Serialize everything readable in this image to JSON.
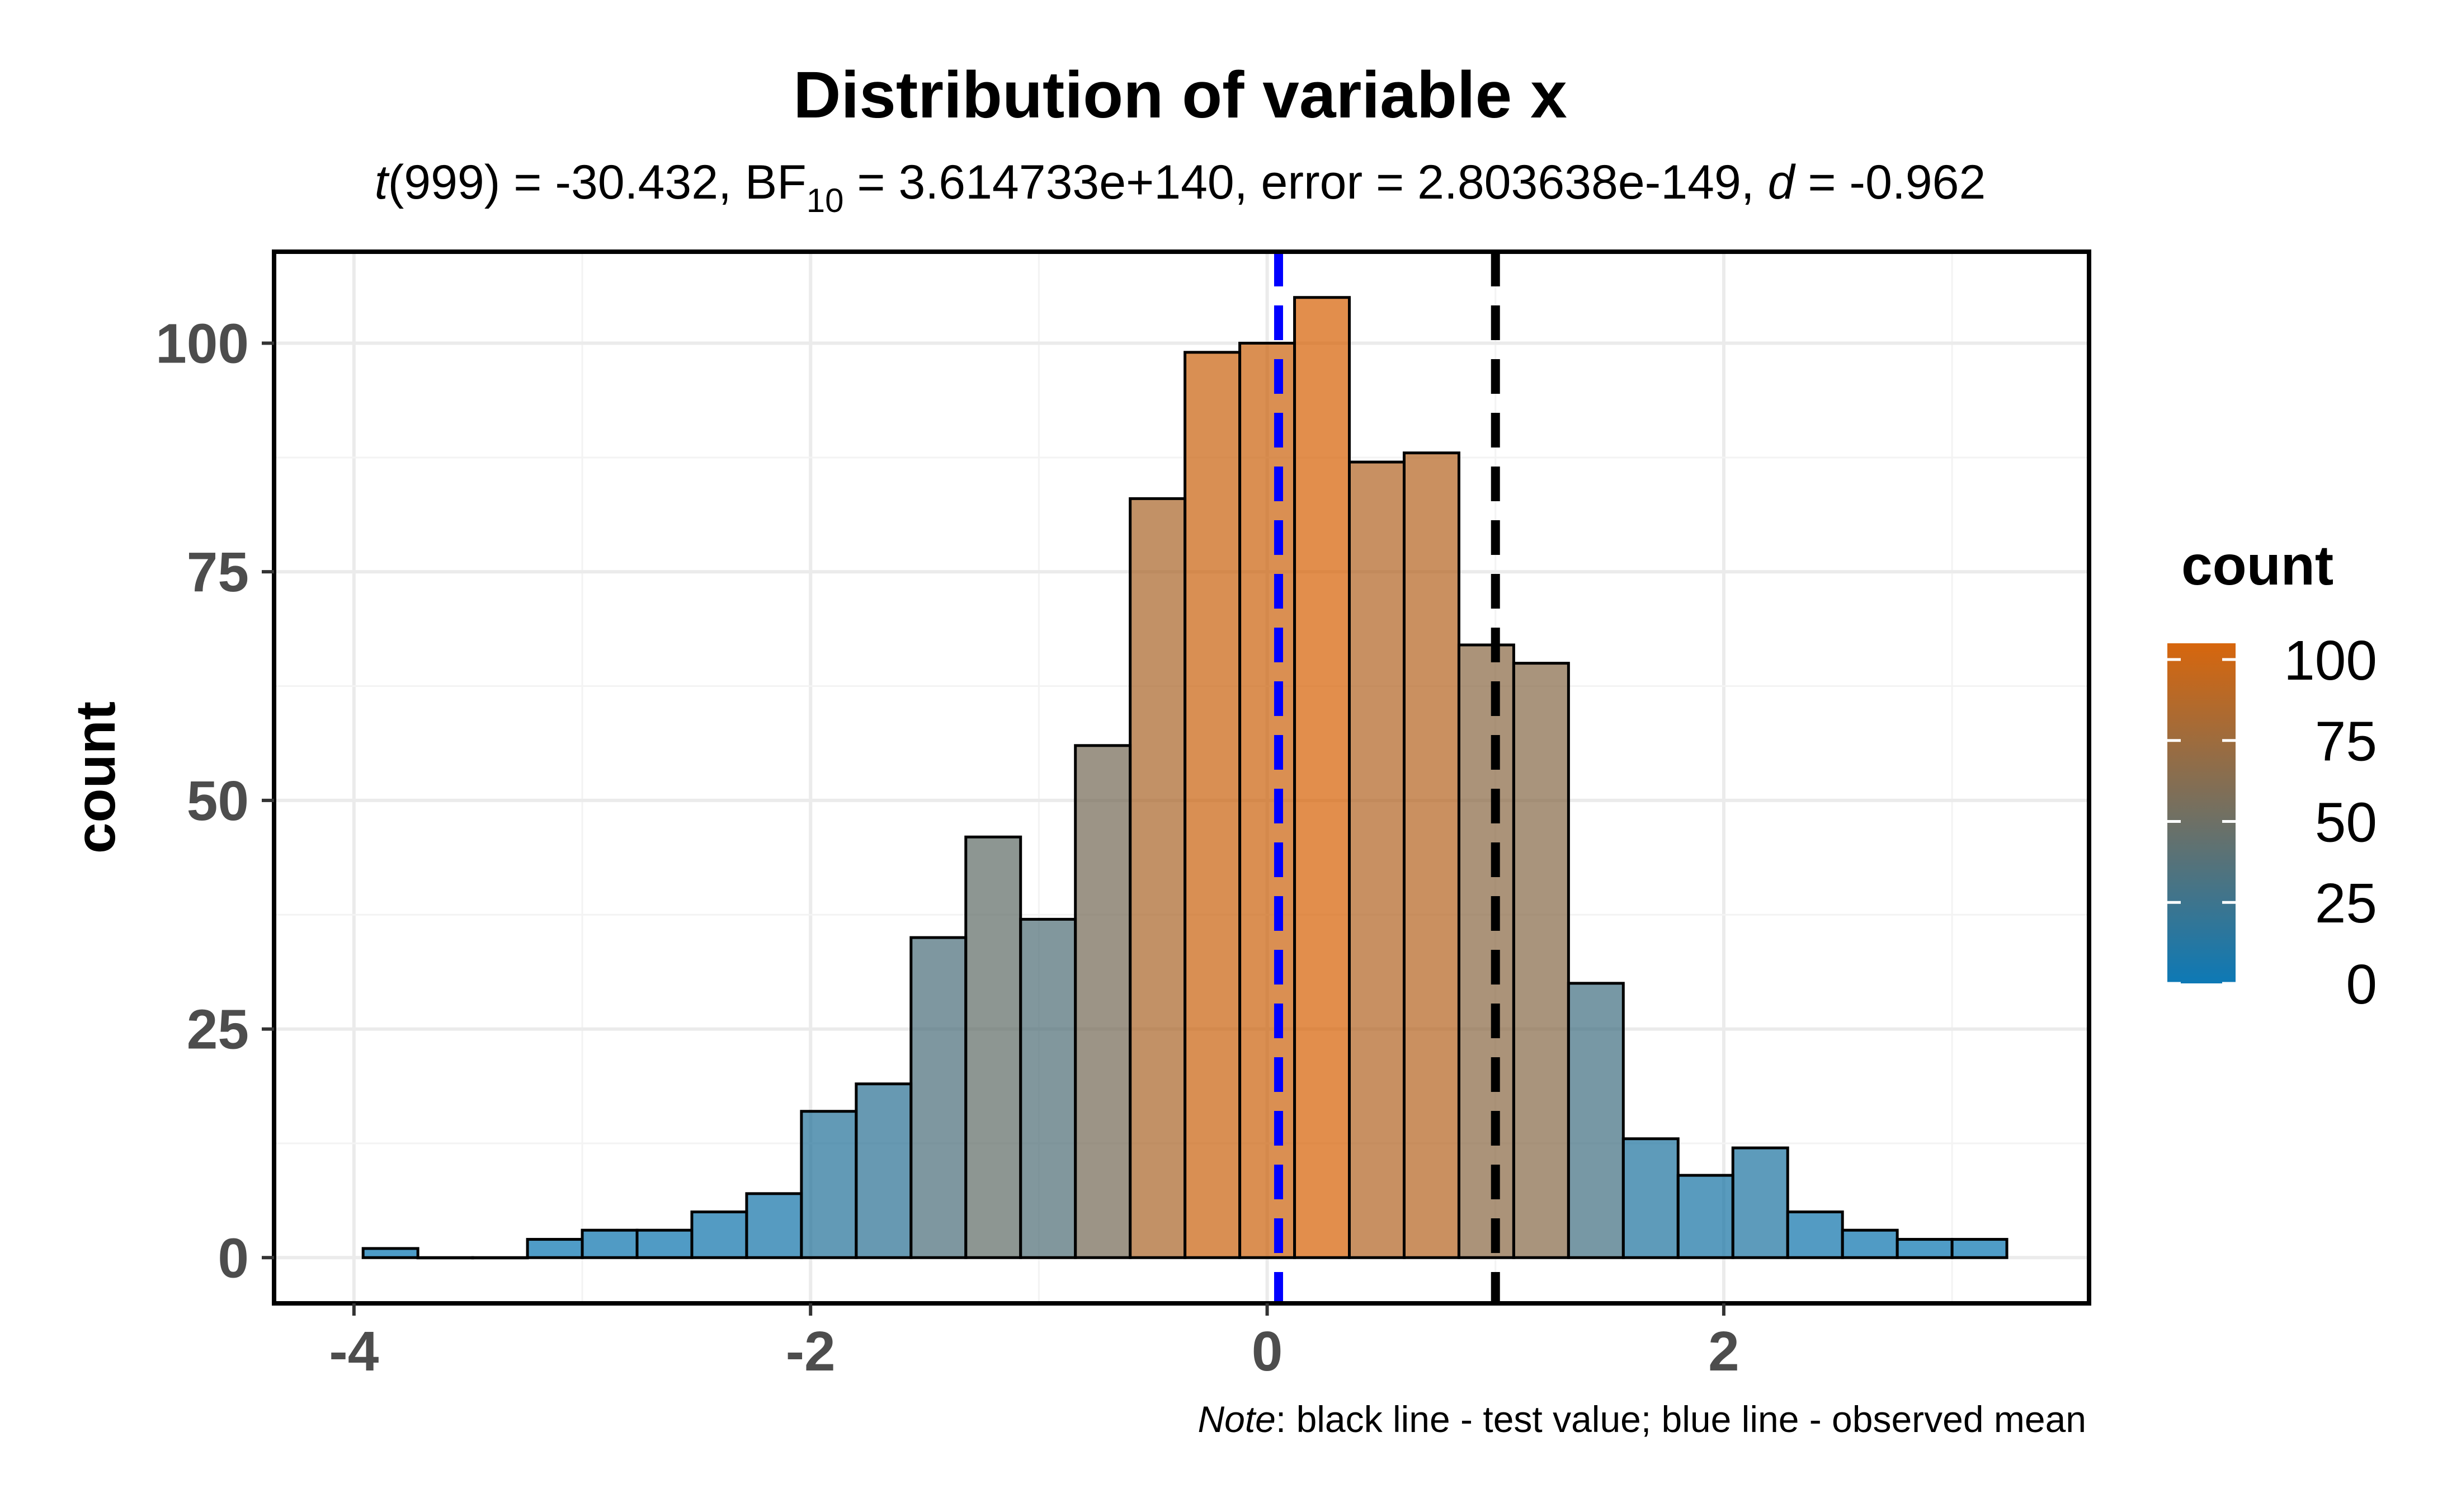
{
  "chart_data": {
    "type": "bar",
    "subtype": "histogram",
    "title": "Distribution of variable x",
    "subtitle": {
      "t_symbol": "t",
      "t_df": "(999) = -30.432, ",
      "bf_main": "BF",
      "bf_sub": "10",
      "bf_rest": " = 3.614733e+140, error = 2.803638e-149, ",
      "d_symbol": "d",
      "d_rest": " = -0.962"
    },
    "xlabel": "",
    "ylabel": "count",
    "xlim": [
      -4.35,
      3.6
    ],
    "ylim": [
      -5,
      110
    ],
    "x_ticks": [
      -4,
      -2,
      0,
      2
    ],
    "x_tick_labels": [
      "-4",
      "-2",
      "0",
      "2"
    ],
    "y_ticks": [
      0,
      25,
      50,
      75,
      100
    ],
    "y_tick_labels": [
      "0",
      "25",
      "50",
      "75",
      "100"
    ],
    "grid": true,
    "bin_width": 0.24,
    "bins": [
      {
        "start": -3.96,
        "end": -3.72,
        "count": 1
      },
      {
        "start": -3.72,
        "end": -3.48,
        "count": 0
      },
      {
        "start": -3.48,
        "end": -3.24,
        "count": 0
      },
      {
        "start": -3.24,
        "end": -3.0,
        "count": 2
      },
      {
        "start": -3.0,
        "end": -2.76,
        "count": 3
      },
      {
        "start": -2.76,
        "end": -2.52,
        "count": 3
      },
      {
        "start": -2.52,
        "end": -2.28,
        "count": 5
      },
      {
        "start": -2.28,
        "end": -2.04,
        "count": 7
      },
      {
        "start": -2.04,
        "end": -1.8,
        "count": 16
      },
      {
        "start": -1.8,
        "end": -1.56,
        "count": 19
      },
      {
        "start": -1.56,
        "end": -1.32,
        "count": 35
      },
      {
        "start": -1.32,
        "end": -1.08,
        "count": 46
      },
      {
        "start": -1.08,
        "end": -0.84,
        "count": 37
      },
      {
        "start": -0.84,
        "end": -0.6,
        "count": 56
      },
      {
        "start": -0.6,
        "end": -0.36,
        "count": 83
      },
      {
        "start": -0.36,
        "end": -0.12,
        "count": 99
      },
      {
        "start": -0.12,
        "end": 0.12,
        "count": 100
      },
      {
        "start": 0.12,
        "end": 0.36,
        "count": 105
      },
      {
        "start": 0.36,
        "end": 0.6,
        "count": 87
      },
      {
        "start": 0.6,
        "end": 0.84,
        "count": 88
      },
      {
        "start": 0.84,
        "end": 1.08,
        "count": 67
      },
      {
        "start": 1.08,
        "end": 1.32,
        "count": 65
      },
      {
        "start": 1.32,
        "end": 1.56,
        "count": 30
      },
      {
        "start": 1.56,
        "end": 1.8,
        "count": 13
      },
      {
        "start": 1.8,
        "end": 2.04,
        "count": 9
      },
      {
        "start": 2.04,
        "end": 2.28,
        "count": 12
      },
      {
        "start": 2.28,
        "end": 2.52,
        "count": 5
      },
      {
        "start": 2.52,
        "end": 2.76,
        "count": 3
      },
      {
        "start": 2.76,
        "end": 3.0,
        "count": 2
      },
      {
        "start": 3.0,
        "end": 3.24,
        "count": 2
      }
    ],
    "reference_lines": [
      {
        "role": "observed mean",
        "x": 0.05,
        "color": "#0000ff",
        "style": "dashed"
      },
      {
        "role": "test value",
        "x": 1.0,
        "color": "#000000",
        "style": "dashed"
      }
    ],
    "fill_gradient": {
      "low_color": "#0072B2",
      "high_color": "#D55E00",
      "domain": [
        0,
        105
      ]
    },
    "legend": {
      "title": "count",
      "position": "right",
      "labels": [
        "100",
        "75",
        "50",
        "25",
        "0"
      ],
      "values": [
        100,
        75,
        50,
        25,
        0
      ]
    },
    "caption": {
      "note_label": "Note",
      "note_text": ": black line - test value; blue line - observed mean"
    }
  }
}
